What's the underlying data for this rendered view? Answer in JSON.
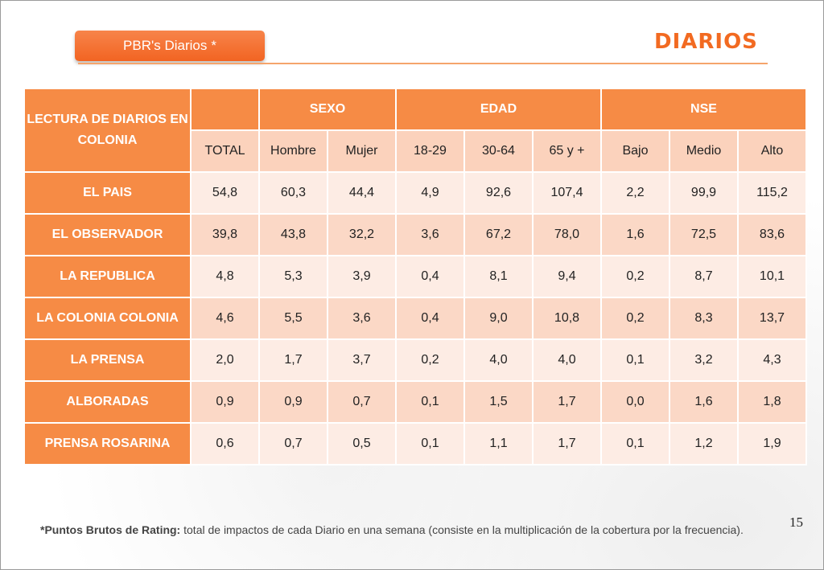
{
  "header": {
    "tag_label": "PBR's Diarios",
    "tag_star": "*",
    "title": "DIARIOS"
  },
  "table": {
    "corner_label": "LECTURA DE DIARIOS EN COLONIA",
    "groups": [
      "SEXO",
      "EDAD",
      "NSE"
    ],
    "subheaders": [
      "TOTAL",
      "Hombre",
      "Mujer",
      "18-29",
      "30-64",
      "65 y +",
      "Bajo",
      "Medio",
      "Alto"
    ],
    "rows": [
      {
        "label": "EL PAIS",
        "values": [
          "54,8",
          "60,3",
          "44,4",
          "4,9",
          "92,6",
          "107,4",
          "2,2",
          "99,9",
          "115,2"
        ]
      },
      {
        "label": "EL OBSERVADOR",
        "values": [
          "39,8",
          "43,8",
          "32,2",
          "3,6",
          "67,2",
          "78,0",
          "1,6",
          "72,5",
          "83,6"
        ]
      },
      {
        "label": "LA REPUBLICA",
        "values": [
          "4,8",
          "5,3",
          "3,9",
          "0,4",
          "8,1",
          "9,4",
          "0,2",
          "8,7",
          "10,1"
        ]
      },
      {
        "label": "LA COLONIA COLONIA",
        "values": [
          "4,6",
          "5,5",
          "3,6",
          "0,4",
          "9,0",
          "10,8",
          "0,2",
          "8,3",
          "13,7"
        ]
      },
      {
        "label": "LA PRENSA",
        "values": [
          "2,0",
          "1,7",
          "3,7",
          "0,2",
          "4,0",
          "4,0",
          "0,1",
          "3,2",
          "4,3"
        ]
      },
      {
        "label": "ALBORADAS",
        "values": [
          "0,9",
          "0,9",
          "0,7",
          "0,1",
          "1,5",
          "1,7",
          "0,0",
          "1,6",
          "1,8"
        ]
      },
      {
        "label": "PRENSA ROSARINA",
        "values": [
          "0,6",
          "0,7",
          "0,5",
          "0,1",
          "1,1",
          "1,7",
          "0,1",
          "1,2",
          "1,9"
        ]
      }
    ]
  },
  "footer": {
    "page_number": "15",
    "footnote_bold": "*Puntos Brutos de Rating:",
    "footnote_text": " total de impactos de cada Diario en una semana (consiste en la multiplicación de la cobertura por la frecuencia)."
  },
  "colors": {
    "accent": "#f26a21",
    "header_fill": "#f68b45",
    "cell_fill_a": "#fbd8c6",
    "cell_fill_b": "#fdece4"
  }
}
